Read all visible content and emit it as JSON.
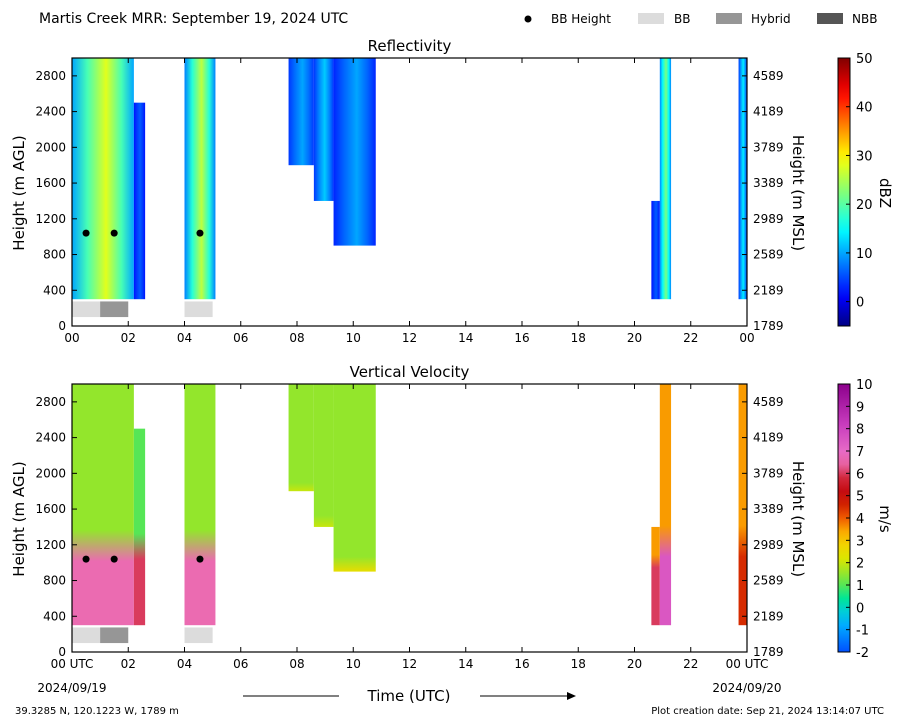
{
  "header": {
    "title": "Martis Creek MRR:  September 19, 2024 UTC",
    "legend": [
      {
        "label": "BB Height",
        "symbol": "dot",
        "color": "#000000"
      },
      {
        "label": "BB",
        "symbol": "bar",
        "color": "#dcdcdc"
      },
      {
        "label": "Hybrid",
        "symbol": "bar",
        "color": "#969696"
      },
      {
        "label": "NBB",
        "symbol": "bar",
        "color": "#555555"
      }
    ]
  },
  "footer": {
    "location": "39.3285 N, 120.1223 W, 1789 m",
    "creation": "Plot creation date: Sep 21, 2024 13:14:07 UTC",
    "xlabel": "Time (UTC)",
    "start_date": "2024/09/19",
    "end_date": "2024/09/20"
  },
  "chart_data": [
    {
      "type": "heatmap",
      "title": "Reflectivity",
      "ylabel": "Height (m AGL)",
      "ylabel_right": "Height (m MSL)",
      "colorbar_label": "dBZ",
      "colormap": "jet",
      "xlim": [
        0,
        24
      ],
      "ylim": [
        0,
        3000
      ],
      "xticks": [
        "00",
        "02",
        "04",
        "06",
        "08",
        "10",
        "12",
        "14",
        "16",
        "18",
        "20",
        "22",
        "00"
      ],
      "yticks": [
        0,
        400,
        800,
        1200,
        1600,
        2000,
        2400,
        2800
      ],
      "yticks_right": [
        "1789",
        "2189",
        "2589",
        "2989",
        "3389",
        "3789",
        "4189",
        "4589"
      ],
      "colorbar_range": [
        -5,
        50
      ],
      "colorbar_ticks": [
        "0",
        "10",
        "20",
        "30",
        "40",
        "50"
      ],
      "colorbar_tick_values": [
        0,
        10,
        20,
        30,
        40,
        50
      ],
      "echo_columns": [
        {
          "start": 0.0,
          "end": 2.2,
          "bottom": 300,
          "top": 3000,
          "core_value": 28,
          "edge_value": 10
        },
        {
          "start": 2.2,
          "end": 2.6,
          "bottom": 300,
          "top": 2500,
          "core_value": 6,
          "edge_value": 2
        },
        {
          "start": 4.0,
          "end": 5.1,
          "bottom": 300,
          "top": 3000,
          "core_value": 26,
          "edge_value": 8
        },
        {
          "start": 7.7,
          "end": 8.6,
          "bottom": 1800,
          "top": 3000,
          "core_value": 10,
          "edge_value": 4
        },
        {
          "start": 8.6,
          "end": 9.3,
          "bottom": 1400,
          "top": 3000,
          "core_value": 12,
          "edge_value": 4
        },
        {
          "start": 9.3,
          "end": 10.8,
          "bottom": 900,
          "top": 3000,
          "core_value": 10,
          "edge_value": 3
        },
        {
          "start": 20.6,
          "end": 20.9,
          "bottom": 300,
          "top": 1400,
          "core_value": 6,
          "edge_value": 2
        },
        {
          "start": 20.9,
          "end": 21.3,
          "bottom": 300,
          "top": 3000,
          "core_value": 22,
          "edge_value": 8
        },
        {
          "start": 23.7,
          "end": 24.0,
          "bottom": 300,
          "top": 3000,
          "core_value": 14,
          "edge_value": 4
        }
      ],
      "bb_height_points": [
        {
          "time": 0.5,
          "height": 1040
        },
        {
          "time": 1.5,
          "height": 1040
        },
        {
          "time": 4.55,
          "height": 1040
        }
      ],
      "bb_type_bars": [
        {
          "start": 0.0,
          "end": 1.0,
          "type": "BB"
        },
        {
          "start": 1.0,
          "end": 2.0,
          "type": "Hybrid"
        },
        {
          "start": 4.0,
          "end": 5.0,
          "type": "BB"
        }
      ]
    },
    {
      "type": "heatmap",
      "title": "Vertical Velocity",
      "ylabel": "Height (m AGL)",
      "ylabel_right": "Height (m MSL)",
      "colorbar_label": "m/s",
      "colormap": "velocity",
      "xlim": [
        0,
        24
      ],
      "ylim": [
        0,
        3000
      ],
      "xticks": [
        "00 UTC",
        "02",
        "04",
        "06",
        "08",
        "10",
        "12",
        "14",
        "16",
        "18",
        "20",
        "22",
        "00 UTC"
      ],
      "yticks": [
        0,
        400,
        800,
        1200,
        1600,
        2000,
        2400,
        2800
      ],
      "yticks_right": [
        "1789",
        "2189",
        "2589",
        "2989",
        "3389",
        "3789",
        "4189",
        "4589"
      ],
      "colorbar_range": [
        -2,
        10
      ],
      "colorbar_ticks": [
        "-2",
        "-1",
        "0",
        "1",
        "2",
        "3",
        "4",
        "5",
        "6",
        "7",
        "8",
        "9",
        "10"
      ],
      "colorbar_tick_values": [
        -2,
        -1,
        0,
        1,
        2,
        3,
        4,
        5,
        6,
        7,
        8,
        9,
        10
      ],
      "echo_columns": [
        {
          "start": 0.0,
          "end": 2.2,
          "bottom": 300,
          "top": 3000,
          "upper_value": 1.5,
          "lower_value": 6.5,
          "transition_height": 1150
        },
        {
          "start": 2.2,
          "end": 2.6,
          "bottom": 300,
          "top": 2500,
          "upper_value": 1.0,
          "lower_value": 6.0,
          "transition_height": 1150
        },
        {
          "start": 4.0,
          "end": 5.1,
          "bottom": 300,
          "top": 3000,
          "upper_value": 1.5,
          "lower_value": 6.5,
          "transition_height": 1150
        },
        {
          "start": 7.7,
          "end": 8.6,
          "bottom": 1800,
          "top": 3000,
          "upper_value": 1.5,
          "lower_value": 2.0,
          "transition_height": 1800
        },
        {
          "start": 8.6,
          "end": 9.3,
          "bottom": 1400,
          "top": 3000,
          "upper_value": 1.5,
          "lower_value": 2.0,
          "transition_height": 1400
        },
        {
          "start": 9.3,
          "end": 10.8,
          "bottom": 900,
          "top": 3000,
          "upper_value": 1.5,
          "lower_value": 2.5,
          "transition_height": 900
        },
        {
          "start": 20.6,
          "end": 20.9,
          "bottom": 300,
          "top": 1400,
          "upper_value": 3.5,
          "lower_value": 6.0,
          "transition_height": 1000
        },
        {
          "start": 20.9,
          "end": 21.3,
          "bottom": 300,
          "top": 3000,
          "upper_value": 3.5,
          "lower_value": 7.5,
          "transition_height": 1200
        },
        {
          "start": 23.7,
          "end": 24.0,
          "bottom": 300,
          "top": 3000,
          "upper_value": 3.5,
          "lower_value": 4.5,
          "transition_height": 1200
        }
      ],
      "bb_height_points": [
        {
          "time": 0.5,
          "height": 1040
        },
        {
          "time": 1.5,
          "height": 1040
        },
        {
          "time": 4.55,
          "height": 1040
        }
      ],
      "bb_type_bars": [
        {
          "start": 0.0,
          "end": 1.0,
          "type": "BB"
        },
        {
          "start": 1.0,
          "end": 2.0,
          "type": "Hybrid"
        },
        {
          "start": 4.0,
          "end": 5.0,
          "type": "BB"
        }
      ]
    }
  ]
}
